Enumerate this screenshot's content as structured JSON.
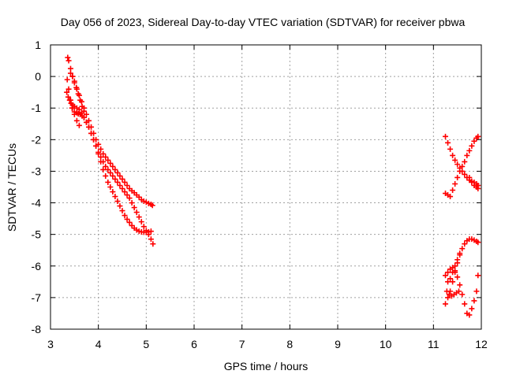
{
  "chart_data": {
    "type": "scatter",
    "title": "Day 056 of 2023, Sidereal Day-to-day VTEC variation (SDTVAR) for receiver pbwa",
    "xlabel": "GPS time / hours",
    "ylabel": "SDTVAR / TECUs",
    "xlim": [
      3,
      12
    ],
    "ylim": [
      -8,
      1
    ],
    "xticks": [
      "3",
      "4",
      "5",
      "6",
      "7",
      "8",
      "9",
      "10",
      "11",
      "12"
    ],
    "yticks": [
      "-8",
      "-7",
      "-6",
      "-5",
      "-4",
      "-3",
      "-2",
      "-1",
      "0",
      "1"
    ],
    "grid": true,
    "marker": "+",
    "color": "#ff0000",
    "series": [
      {
        "x": [
          3.36,
          3.38,
          3.42,
          3.46,
          3.5,
          3.55,
          3.6,
          3.65,
          3.7,
          3.75,
          3.8,
          3.85,
          3.9,
          3.95,
          4.0,
          4.05,
          4.1,
          4.15,
          4.2,
          4.25,
          4.3,
          4.35,
          4.4,
          4.45,
          4.5,
          4.55,
          4.6,
          4.65,
          4.7,
          4.75,
          4.8,
          4.85,
          4.9,
          4.95,
          5.0,
          5.05,
          5.1,
          5.13
        ],
        "y": [
          0.6,
          0.5,
          0.25,
          0.0,
          -0.2,
          -0.4,
          -0.6,
          -0.8,
          -1.0,
          -1.2,
          -1.4,
          -1.6,
          -1.8,
          -2.0,
          -2.15,
          -2.3,
          -2.45,
          -2.55,
          -2.65,
          -2.75,
          -2.85,
          -2.95,
          -3.05,
          -3.15,
          -3.25,
          -3.35,
          -3.45,
          -3.55,
          -3.62,
          -3.68,
          -3.75,
          -3.82,
          -3.9,
          -3.95,
          -3.98,
          -4.02,
          -4.05,
          -4.08
        ]
      },
      {
        "x": [
          3.35,
          3.38,
          3.42,
          3.46,
          3.5,
          3.55,
          3.58,
          3.62,
          3.66,
          3.7,
          3.75,
          3.8,
          3.85,
          3.9,
          3.95,
          4.0,
          4.05,
          4.1,
          4.15,
          4.2,
          4.25,
          4.3,
          4.35,
          4.4,
          4.45,
          4.5,
          4.55,
          4.6,
          4.65,
          4.7,
          4.75,
          4.8,
          4.85,
          4.9,
          4.95,
          5.0,
          5.05,
          5.1
        ],
        "y": [
          -0.1,
          -0.4,
          -0.75,
          -1.0,
          -1.12,
          -1.15,
          -1.18,
          -1.2,
          -1.25,
          -1.3,
          -1.45,
          -1.6,
          -1.8,
          -2.0,
          -2.2,
          -2.45,
          -2.7,
          -2.95,
          -3.15,
          -3.35,
          -3.5,
          -3.65,
          -3.8,
          -3.95,
          -4.1,
          -4.25,
          -4.4,
          -4.52,
          -4.62,
          -4.72,
          -4.8,
          -4.86,
          -4.9,
          -4.92,
          -4.93,
          -4.93,
          -4.92,
          -4.9
        ]
      },
      {
        "x": [
          3.34,
          3.37,
          3.4,
          3.43,
          3.46,
          3.5,
          3.55,
          3.6,
          3.65,
          3.7,
          3.75,
          3.8,
          3.85,
          3.9,
          3.95,
          4.0,
          4.05,
          4.1,
          4.15,
          4.2,
          4.25,
          4.3,
          4.35,
          4.4,
          4.45,
          4.5,
          4.55,
          4.6,
          4.65,
          4.7,
          4.75,
          4.8,
          4.85,
          4.9,
          4.95,
          5.0,
          5.05,
          5.1,
          5.14
        ],
        "y": [
          -0.5,
          -0.65,
          -0.75,
          -0.85,
          -0.9,
          -0.95,
          -1.0,
          -1.05,
          -1.15,
          -1.3,
          -1.45,
          -1.6,
          -1.8,
          -2.0,
          -2.2,
          -2.4,
          -2.55,
          -2.7,
          -2.85,
          -2.95,
          -3.05,
          -3.15,
          -3.25,
          -3.35,
          -3.45,
          -3.55,
          -3.65,
          -3.75,
          -3.85,
          -4.0,
          -4.15,
          -4.3,
          -4.45,
          -4.6,
          -4.75,
          -4.88,
          -5.0,
          -5.15,
          -5.3
        ]
      },
      {
        "x": [
          3.45,
          3.5,
          3.55,
          3.6
        ],
        "y": [
          -1.0,
          -1.2,
          -1.4,
          -1.55
        ]
      },
      {
        "x": [
          3.42,
          3.46,
          3.5,
          3.54,
          3.58,
          3.62,
          3.66,
          3.7
        ],
        "y": [
          0.1,
          0.0,
          -0.15,
          -0.35,
          -0.55,
          -0.75,
          -0.95,
          -1.1
        ]
      },
      {
        "x": [
          11.25,
          11.3,
          11.35,
          11.4,
          11.45,
          11.5,
          11.55,
          11.6,
          11.65,
          11.7,
          11.75,
          11.8,
          11.85,
          11.9,
          11.93
        ],
        "y": [
          -1.9,
          -2.1,
          -2.3,
          -2.5,
          -2.65,
          -2.78,
          -2.9,
          -3.0,
          -3.1,
          -3.2,
          -3.28,
          -3.32,
          -3.35,
          -3.4,
          -3.45
        ]
      },
      {
        "x": [
          11.25,
          11.3,
          11.35,
          11.4,
          11.45,
          11.5,
          11.55,
          11.6,
          11.65,
          11.7,
          11.75,
          11.8,
          11.85,
          11.9,
          11.93
        ],
        "y": [
          -3.7,
          -3.75,
          -3.8,
          -3.6,
          -3.4,
          -3.2,
          -3.0,
          -2.85,
          -2.7,
          -2.5,
          -2.35,
          -2.2,
          -2.05,
          -1.95,
          -1.9
        ]
      },
      {
        "x": [
          11.75,
          11.8,
          11.85,
          11.9,
          11.93
        ],
        "y": [
          -3.2,
          -3.35,
          -3.45,
          -3.5,
          -3.55
        ]
      },
      {
        "x": [
          11.25,
          11.3,
          11.35,
          11.4,
          11.45,
          11.5,
          11.55,
          11.6,
          11.65,
          11.7,
          11.75,
          11.8,
          11.85,
          11.9,
          11.93
        ],
        "y": [
          -7.2,
          -7.0,
          -6.8,
          -6.5,
          -6.2,
          -5.9,
          -5.65,
          -5.45,
          -5.3,
          -5.2,
          -5.15,
          -5.15,
          -5.18,
          -5.22,
          -5.25
        ]
      },
      {
        "x": [
          11.25,
          11.3,
          11.35,
          11.4,
          11.45,
          11.5,
          11.55,
          11.6,
          11.65,
          11.7,
          11.75,
          11.8,
          11.85,
          11.9,
          11.93
        ],
        "y": [
          -6.3,
          -6.2,
          -6.1,
          -6.05,
          -6.15,
          -6.35,
          -6.6,
          -6.9,
          -7.2,
          -7.5,
          -7.55,
          -7.35,
          -7.1,
          -6.8,
          -6.3
        ]
      },
      {
        "x": [
          11.28,
          11.33,
          11.38,
          11.43,
          11.48,
          11.53
        ],
        "y": [
          -6.8,
          -6.9,
          -6.95,
          -6.9,
          -6.85,
          -6.8
        ]
      },
      {
        "x": [
          11.3,
          11.35,
          11.4,
          11.45,
          11.5,
          11.55
        ],
        "y": [
          -6.5,
          -6.4,
          -6.2,
          -6.0,
          -5.8,
          -5.6
        ]
      }
    ]
  }
}
